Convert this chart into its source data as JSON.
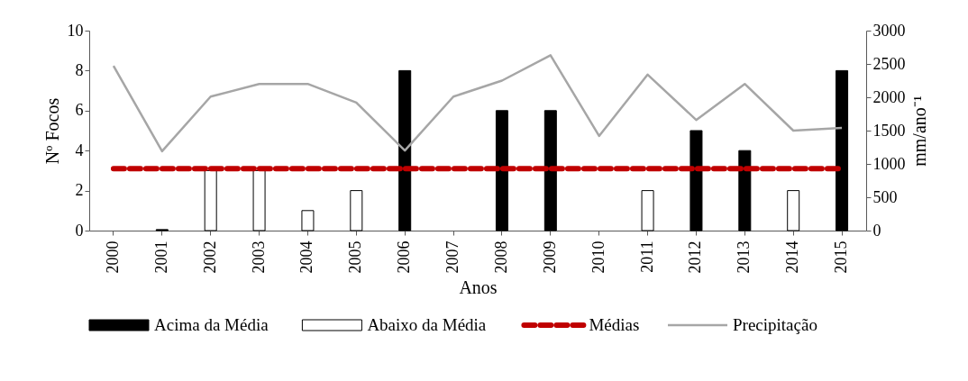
{
  "chart_data": {
    "type": "bar",
    "xlabel": "Anos",
    "ylabel": "Nº Focos",
    "y2label": "mm/ano⁻¹",
    "categories": [
      "2000",
      "2001",
      "2002",
      "2003",
      "2004",
      "2005",
      "2006",
      "2007",
      "2008",
      "2009",
      "2010",
      "2011",
      "2012",
      "2013",
      "2014",
      "2015"
    ],
    "series": [
      {
        "name": "Acima da Média",
        "color": "#000000",
        "values": [
          null,
          0.05,
          null,
          null,
          null,
          null,
          8,
          null,
          6,
          6,
          null,
          null,
          5,
          4,
          null,
          8
        ]
      },
      {
        "name": "Abaixo da Média",
        "color": "#ffffff",
        "values": [
          null,
          null,
          3,
          3,
          1,
          2,
          null,
          null,
          null,
          null,
          null,
          2,
          null,
          null,
          2,
          null
        ]
      },
      {
        "name": "Médias",
        "type": "line",
        "color": "#c00000",
        "line_style": "dashed",
        "values": [
          3.1,
          3.1,
          3.1,
          3.1,
          3.1,
          3.1,
          3.1,
          3.1,
          3.1,
          3.1,
          3.1,
          3.1,
          3.1,
          3.1,
          3.1,
          3.1
        ]
      },
      {
        "name": "Precipitação",
        "type": "line",
        "color": "#a6a6a6",
        "axis": "y2",
        "values": [
          2470,
          1190,
          2010,
          2200,
          2200,
          1920,
          1200,
          2010,
          2250,
          2630,
          1420,
          2340,
          1660,
          2200,
          1500,
          1540
        ]
      }
    ],
    "ylim": [
      0,
      10
    ],
    "yticks": [
      0,
      2,
      4,
      6,
      8,
      10
    ],
    "y2lim": [
      0,
      3000
    ],
    "y2ticks": [
      0,
      500,
      1000,
      1500,
      2000,
      2500,
      3000
    ],
    "grid": false,
    "legend": "bottom"
  }
}
